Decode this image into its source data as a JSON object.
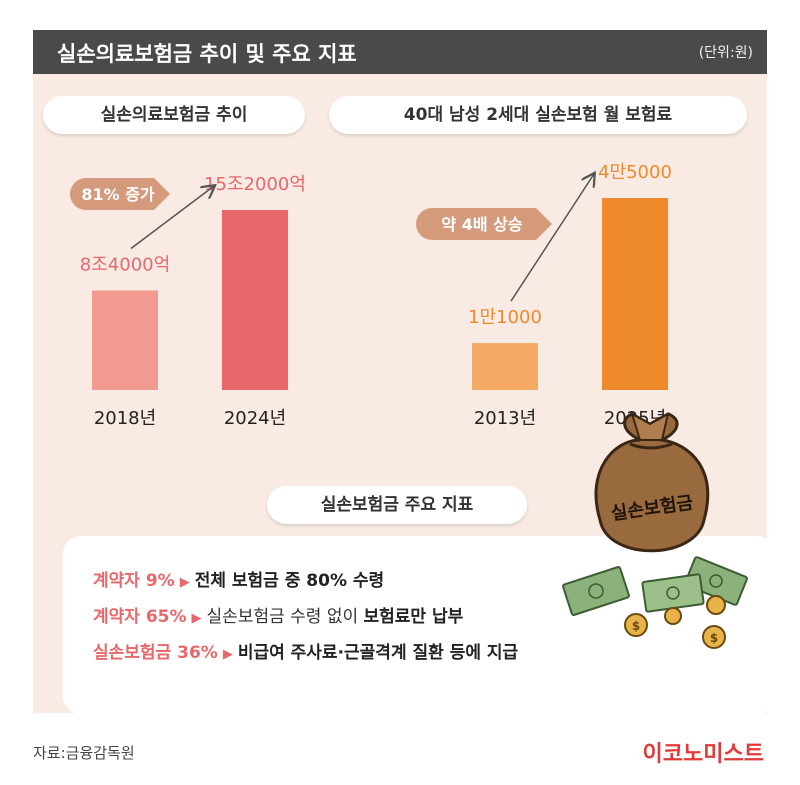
{
  "header": {
    "title": "실손의료보험금 추이 및 주요 지표",
    "unit": "(단위:원)"
  },
  "chart_data": [
    {
      "type": "bar",
      "title": "실손의료보험금 추이",
      "categories": [
        "2018년",
        "2024년"
      ],
      "values": [
        84000,
        152000
      ],
      "value_unit": "억",
      "data_labels": [
        "8조4000억",
        "15조2000억"
      ],
      "annotation": "81% 증가",
      "colors": [
        "#f09a90",
        "#e8676a"
      ]
    },
    {
      "type": "bar",
      "title": "40대 남성 2세대 실손보험 월 보험료",
      "categories": [
        "2013년",
        "2025년"
      ],
      "values": [
        11000,
        45000
      ],
      "data_labels": [
        "1만1000",
        "4만5000"
      ],
      "annotation": "약 4배 상승",
      "colors": [
        "#f5aa66",
        "#ee8a2b"
      ]
    }
  ],
  "indicators": {
    "title": "실손보험금 주요 지표",
    "items": [
      {
        "highlight": "계약자 9%",
        "middle": "",
        "rest": "전체 보험금 중 80% 수령"
      },
      {
        "highlight": "계약자 65%",
        "middle": "실손보험금 수령 없이 ",
        "rest": "보험료만 납부"
      },
      {
        "highlight": "실손보험금 36%",
        "middle": "",
        "rest": "비급여 주사료·근골격계 질환 등에 지급"
      }
    ],
    "bag_label": "실손보험금"
  },
  "footer": {
    "source": "자료:금융감독원",
    "brand": "이코노미스트"
  },
  "colors": {
    "header_bg": "#4a4a4a",
    "panel_bg": "#f9ebe4",
    "accent_red": "#e8676a",
    "accent_orange": "#ee8a2b",
    "annotation_bg": "#d59a7b"
  }
}
